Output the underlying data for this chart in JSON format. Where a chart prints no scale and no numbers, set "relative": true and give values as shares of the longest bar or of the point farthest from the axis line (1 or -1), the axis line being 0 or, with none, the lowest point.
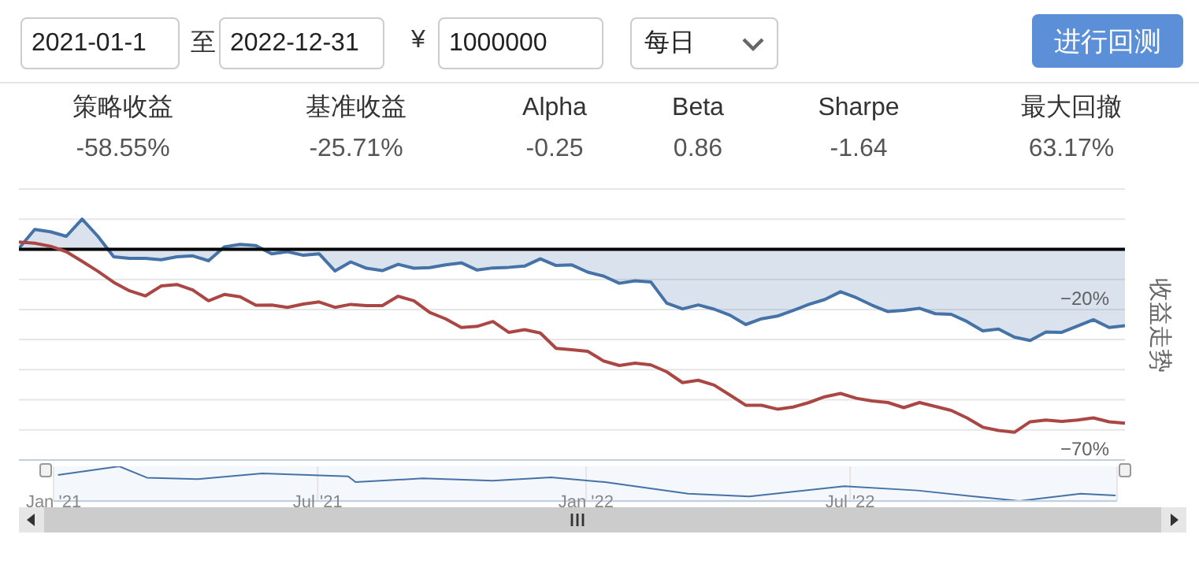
{
  "chart_data": [
    {
      "type": "other",
      "annotations": [
        "2021-01-1",
        "至",
        "2022-12-31",
        "¥",
        "1000000",
        "每日",
        "进行回测",
        "策略收益",
        "-58.55%",
        "基准收益",
        "-25.71%",
        "Alpha",
        "-0.25",
        "Beta",
        "0.86",
        "Sharpe",
        "-1.64",
        "最大回撤",
        "63.17%"
      ]
    },
    {
      "type": "line",
      "ylabel": "收益走势",
      "categories": [
        null,
        null,
        null,
        null,
        null,
        null,
        null,
        null,
        null,
        null,
        null,
        null,
        null,
        null,
        null,
        null,
        null,
        null,
        null,
        null,
        null,
        null,
        null,
        null,
        null,
        null,
        null,
        null,
        null,
        null,
        null,
        null,
        null,
        null,
        null,
        null,
        null,
        null,
        null,
        null,
        null,
        null,
        null,
        null,
        null,
        null,
        null,
        null,
        null,
        null,
        null,
        null,
        null,
        null,
        null,
        null,
        null,
        null,
        null,
        null,
        null,
        null,
        null,
        null,
        null,
        null,
        null,
        null,
        null,
        null,
        null
      ],
      "series": [
        {
          "type": "area",
          "color": "#4572a7",
          "values": [
            0.3,
            6.6,
            5.8,
            4.3,
            10.0,
            4.3,
            -2.5,
            -3.0,
            -3.0,
            -3.5,
            -2.5,
            -2.2,
            -3.8,
            0.8,
            1.6,
            1.2,
            -1.5,
            -0.8,
            -2.0,
            -1.5,
            -7.2,
            -4.2,
            -6.3,
            -7.1,
            -5.0,
            -6.3,
            -6.1,
            -5.2,
            -4.5,
            -6.9,
            -6.2,
            -6.0,
            -5.6,
            -3.2,
            -5.4,
            -5.2,
            -7.6,
            -8.9,
            -11.3,
            -10.5,
            -10.9,
            -17.9,
            -19.8,
            -18.5,
            -19.9,
            -21.9,
            -25.0,
            -23.1,
            -22.2,
            -20.3,
            -18.3,
            -16.7,
            -14.1,
            -16.1,
            -18.6,
            -20.7,
            -20.3,
            -19.6,
            -21.4,
            -21.6,
            -24.0,
            -27.1,
            -26.5,
            -29.2,
            -30.3,
            -27.5,
            -27.6,
            -25.5,
            -23.4,
            -26.0,
            -25.4
          ]
        },
        {
          "type": "line",
          "color": "#aa4643",
          "values": [
            2.4,
            2.0,
            1.0,
            -0.8,
            -4.0,
            -7.3,
            -11.0,
            -13.8,
            -15.5,
            -12.2,
            -11.7,
            -13.5,
            -17.1,
            -15.0,
            -15.8,
            -18.6,
            -18.5,
            -19.3,
            -18.2,
            -17.5,
            -19.3,
            -18.3,
            -18.7,
            -18.7,
            -15.6,
            -17.1,
            -21.0,
            -23.1,
            -26.0,
            -25.6,
            -24.0,
            -27.6,
            -26.7,
            -27.8,
            -32.9,
            -33.4,
            -33.9,
            -37.1,
            -38.6,
            -37.8,
            -38.4,
            -40.7,
            -44.3,
            -43.5,
            -45.1,
            -48.4,
            -51.8,
            -51.8,
            -53.1,
            -52.4,
            -50.9,
            -49.0,
            -47.9,
            -49.5,
            -50.4,
            -50.9,
            -52.6,
            -50.9,
            -52.2,
            -53.5,
            -56.0,
            -59.1,
            -60.2,
            -60.8,
            -57.3,
            -56.7,
            -57.2,
            -56.7,
            -56.0,
            -57.3,
            -57.8
          ]
        }
      ],
      "ylim": [
        -70,
        20
      ],
      "yticks": [
        {
          "value": 20,
          "label": null
        },
        {
          "value": 10,
          "label": null
        },
        {
          "value": 0,
          "label": null
        },
        {
          "value": -10,
          "label": null
        },
        {
          "value": -20,
          "label": "−20%"
        },
        {
          "value": -30,
          "label": null
        },
        {
          "value": -40,
          "label": null
        },
        {
          "value": -50,
          "label": null
        },
        {
          "value": -60,
          "label": null
        },
        {
          "value": -70,
          "label": "−70%"
        }
      ],
      "grid": "y",
      "tick_labels": "y",
      "ref_lines": [
        {
          "axis": "y",
          "value": 0,
          "color": "#000000"
        }
      ]
    },
    {
      "type": "line",
      "relative": true,
      "series": [
        {
          "color": "#4572a7",
          "x": [
            "2021-01-04",
            "2021-02-15",
            "2021-03-06",
            "2021-04-10",
            "2021-05-24",
            "2021-07-22",
            "2021-07-27",
            "2021-09-11",
            "2021-10-29",
            "2021-12-08",
            "2022-01-14",
            "2022-03-12",
            "2022-04-23",
            "2022-06-27",
            "2022-08-16",
            "2022-09-24",
            "2022-10-25",
            "2022-12-06",
            "2022-12-30"
          ],
          "values": [
            0.751,
            1,
            0.673,
            0.631,
            0.793,
            0.712,
            0.544,
            0.652,
            0.585,
            0.68,
            0.544,
            0.212,
            0.131,
            0.424,
            0.304,
            0.131,
            0,
            0.212,
            0.159
          ]
        }
      ],
      "xlim": [
        "2021-01-01",
        "2022-12-31"
      ],
      "xticks": [
        {
          "value": "2021-01-01",
          "label": "Jan '21"
        },
        {
          "value": "2021-07-01",
          "label": "Jul '21"
        },
        {
          "value": "2022-01-01",
          "label": "Jan '22"
        },
        {
          "value": "2022-07-01",
          "label": "Jul '22"
        }
      ],
      "grid": "x",
      "tick_labels": "x"
    }
  ]
}
